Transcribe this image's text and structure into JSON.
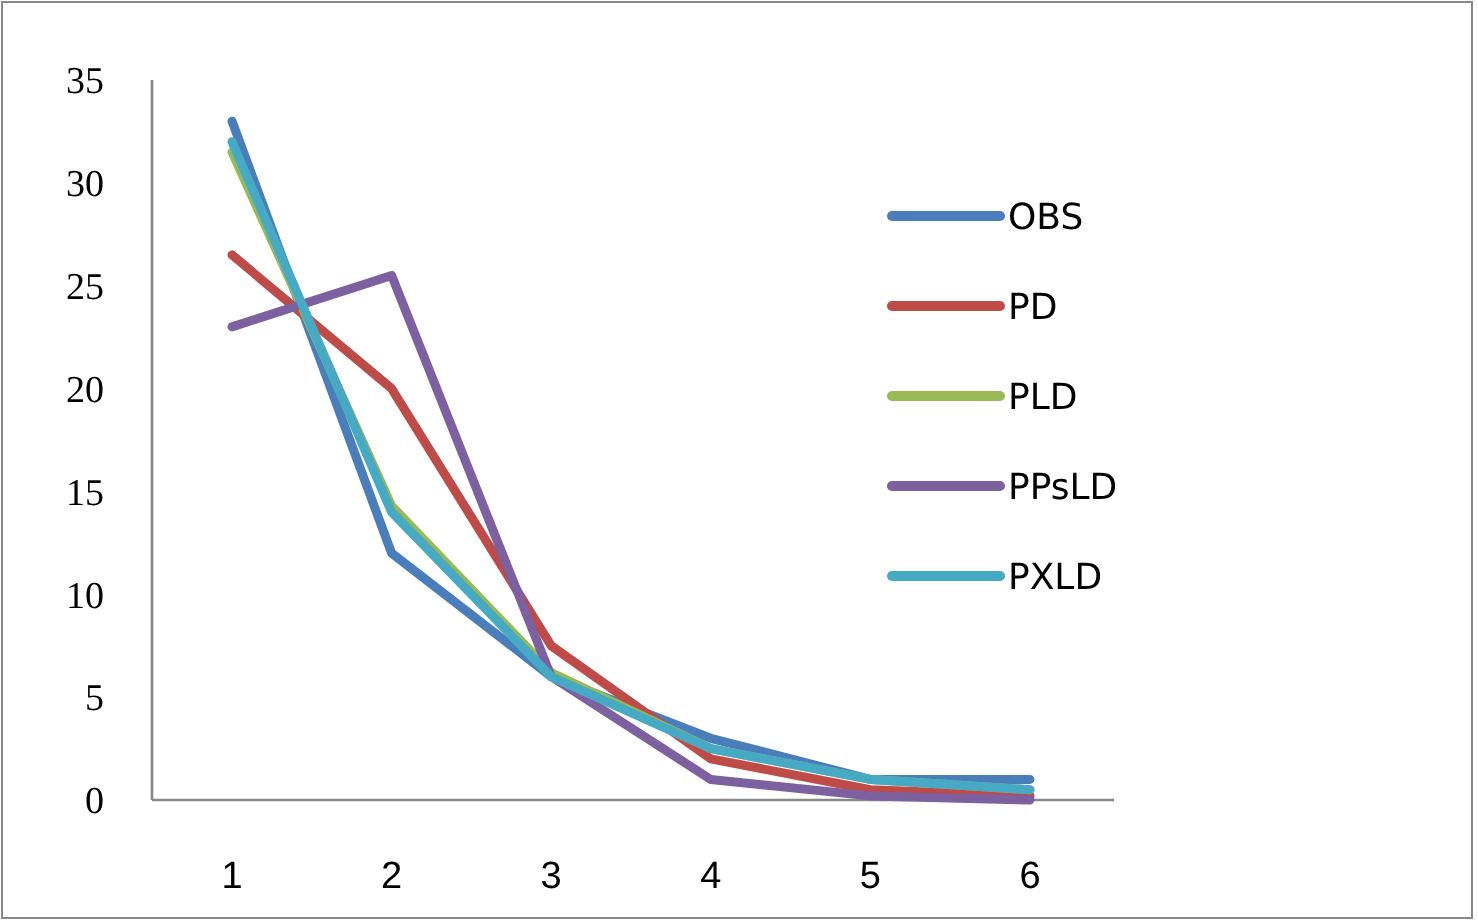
{
  "chart_data": {
    "type": "line",
    "categories": [
      "1",
      "2",
      "3",
      "4",
      "5",
      "6"
    ],
    "ylim": [
      0,
      35
    ],
    "yticks": [
      0,
      5,
      10,
      15,
      20,
      25,
      30,
      35
    ],
    "grid": false,
    "legend": "right",
    "marker": "none",
    "line_style": "solid",
    "series": [
      {
        "name": "OBS",
        "color": "#4a7ebb",
        "values": [
          33,
          12,
          6,
          3,
          1,
          1
        ]
      },
      {
        "name": "PD",
        "color": "#be4b48",
        "values": [
          26.5,
          20,
          7.5,
          2,
          0.5,
          0.2
        ]
      },
      {
        "name": "PLD",
        "color": "#98b954",
        "values": [
          31.5,
          14.3,
          6.2,
          2.5,
          1,
          0.5
        ]
      },
      {
        "name": "PPsLD",
        "color": "#7d60a0",
        "values": [
          23,
          25.5,
          6,
          1,
          0.2,
          0
        ]
      },
      {
        "name": "PXLD",
        "color": "#46aac5",
        "values": [
          32,
          14,
          6,
          2.5,
          1,
          0.5
        ]
      }
    ]
  }
}
